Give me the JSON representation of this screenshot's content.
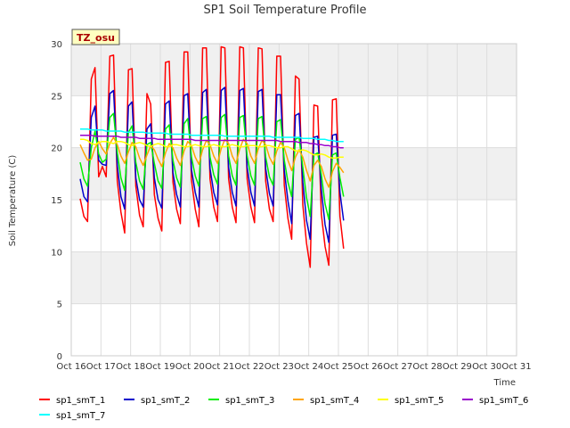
{
  "chart_data": {
    "type": "line",
    "title": "SP1 Soil Temperature Profile",
    "xlabel": "Time",
    "ylabel": "Soil Temperature (C)",
    "station_badge": "TZ_osu",
    "xlim": [
      16,
      31
    ],
    "ylim": [
      0,
      30
    ],
    "x_ticks": [
      {
        "value": 16,
        "label": "Oct 16"
      },
      {
        "value": 17,
        "label": "Oct 17"
      },
      {
        "value": 18,
        "label": "Oct 18"
      },
      {
        "value": 19,
        "label": "Oct 19"
      },
      {
        "value": 20,
        "label": "Oct 20"
      },
      {
        "value": 21,
        "label": "Oct 21"
      },
      {
        "value": 22,
        "label": "Oct 22"
      },
      {
        "value": 23,
        "label": "Oct 23"
      },
      {
        "value": 24,
        "label": "Oct 24"
      },
      {
        "value": 25,
        "label": "Oct 25"
      },
      {
        "value": 26,
        "label": "Oct 26"
      },
      {
        "value": 27,
        "label": "Oct 27"
      },
      {
        "value": 28,
        "label": "Oct 28"
      },
      {
        "value": 29,
        "label": "Oct 29"
      },
      {
        "value": 30,
        "label": "Oct 30"
      },
      {
        "value": 31,
        "label": "Oct 31"
      }
    ],
    "y_ticks": [
      0,
      5,
      10,
      15,
      20,
      25,
      30
    ],
    "grid": true,
    "legend_position": "bottom",
    "x_start": 16.3,
    "x_step": 0.125,
    "series": [
      {
        "name": "sp1_smT_1",
        "color": "#ff0000",
        "values": [
          15.1,
          13.4,
          12.9,
          26.6,
          27.7,
          17.2,
          18.2,
          17.2,
          28.8,
          28.9,
          16.8,
          13.8,
          11.8,
          27.5,
          27.6,
          16.3,
          13.5,
          12.4,
          25.2,
          24.2,
          15.5,
          13.2,
          12.0,
          28.2,
          28.3,
          16.7,
          14.1,
          12.7,
          29.2,
          29.2,
          16.9,
          14.1,
          12.4,
          29.6,
          29.6,
          17.0,
          14.3,
          12.9,
          29.7,
          29.6,
          17.0,
          14.3,
          12.8,
          29.7,
          29.6,
          17.0,
          14.3,
          12.8,
          29.6,
          29.5,
          16.8,
          14.1,
          12.9,
          28.8,
          28.8,
          16.4,
          13.2,
          11.2,
          26.9,
          26.6,
          14.5,
          10.8,
          8.5,
          24.1,
          24.0,
          13.6,
          10.5,
          8.7,
          24.6,
          24.7,
          13.4,
          10.3
        ]
      },
      {
        "name": "sp1_smT_2",
        "color": "#0000cc",
        "values": [
          17.0,
          15.3,
          14.8,
          22.9,
          24.0,
          18.8,
          18.4,
          18.3,
          25.2,
          25.5,
          18.3,
          15.3,
          14.1,
          24.0,
          24.4,
          17.1,
          15.0,
          14.3,
          21.8,
          22.3,
          17.1,
          15.0,
          14.2,
          24.2,
          24.5,
          17.6,
          15.5,
          14.3,
          25.0,
          25.2,
          17.9,
          15.7,
          14.3,
          25.3,
          25.6,
          18.0,
          15.7,
          14.5,
          25.5,
          25.8,
          18.1,
          15.7,
          14.4,
          25.5,
          25.7,
          18.1,
          15.7,
          14.4,
          25.4,
          25.6,
          18.0,
          15.6,
          14.4,
          25.1,
          25.1,
          17.8,
          14.9,
          12.7,
          23.1,
          23.3,
          16.7,
          13.0,
          11.2,
          21.0,
          21.1,
          16.0,
          12.6,
          10.9,
          21.2,
          21.3,
          15.7,
          13.0
        ]
      },
      {
        "name": "sp1_smT_3",
        "color": "#00ee00",
        "values": [
          18.6,
          17.0,
          16.3,
          20.0,
          21.6,
          19.4,
          18.6,
          18.9,
          22.9,
          23.3,
          19.5,
          17.1,
          15.9,
          21.5,
          22.1,
          18.6,
          16.8,
          16.0,
          20.3,
          20.5,
          18.5,
          16.8,
          16.1,
          21.8,
          22.2,
          18.8,
          17.1,
          16.2,
          22.3,
          22.8,
          19.1,
          17.3,
          16.3,
          22.8,
          23.0,
          19.1,
          17.4,
          16.5,
          22.9,
          23.2,
          19.2,
          17.3,
          16.4,
          22.9,
          23.1,
          19.2,
          17.3,
          16.4,
          22.8,
          23.0,
          19.1,
          17.2,
          16.4,
          22.5,
          22.7,
          18.8,
          16.7,
          15.3,
          20.8,
          21.0,
          18.1,
          15.2,
          13.4,
          19.3,
          19.5,
          17.4,
          14.6,
          13.1,
          19.3,
          19.5,
          17.1,
          15.3
        ]
      },
      {
        "name": "sp1_smT_4",
        "color": "#ffa500",
        "values": [
          20.3,
          19.5,
          18.8,
          18.9,
          20.0,
          20.6,
          19.9,
          19.4,
          20.4,
          21.0,
          20.3,
          19.2,
          18.5,
          19.6,
          20.5,
          20.1,
          19.0,
          18.3,
          19.3,
          20.2,
          19.8,
          18.9,
          18.2,
          19.5,
          20.4,
          20.0,
          19.0,
          18.3,
          19.7,
          20.6,
          20.2,
          19.1,
          18.4,
          19.8,
          20.7,
          20.3,
          19.2,
          18.5,
          19.9,
          20.8,
          20.4,
          19.2,
          18.5,
          19.9,
          20.8,
          20.4,
          19.2,
          18.5,
          19.9,
          20.7,
          20.3,
          19.1,
          18.4,
          19.7,
          20.5,
          20.0,
          18.8,
          17.8,
          19.1,
          19.8,
          19.1,
          17.8,
          16.8,
          18.3,
          18.8,
          18.2,
          17.0,
          16.2,
          17.7,
          18.5,
          18.1,
          17.6
        ]
      },
      {
        "name": "sp1_smT_5",
        "color": "#ffff00",
        "values": [
          20.8,
          20.8,
          20.7,
          20.4,
          20.3,
          20.5,
          20.6,
          20.6,
          20.5,
          20.4,
          20.6,
          20.6,
          20.5,
          20.3,
          20.2,
          20.4,
          20.5,
          20.4,
          20.2,
          20.1,
          20.3,
          20.4,
          20.3,
          20.1,
          20.1,
          20.3,
          20.3,
          20.2,
          20.1,
          20.1,
          20.2,
          20.3,
          20.2,
          20.1,
          20.1,
          20.2,
          20.3,
          20.2,
          20.1,
          20.1,
          20.2,
          20.3,
          20.2,
          20.1,
          20.1,
          20.2,
          20.2,
          20.2,
          20.1,
          20.1,
          20.2,
          20.2,
          20.1,
          20.0,
          20.0,
          20.1,
          20.1,
          19.9,
          19.7,
          19.7,
          19.8,
          19.7,
          19.5,
          19.3,
          19.3,
          19.4,
          19.3,
          19.1,
          19.0,
          19.0,
          19.1,
          19.1
        ]
      },
      {
        "name": "sp1_smT_6",
        "color": "#9900cc",
        "values": [
          21.2,
          21.2,
          21.2,
          21.2,
          21.1,
          21.1,
          21.1,
          21.1,
          21.1,
          21.1,
          21.1,
          21.0,
          21.0,
          21.0,
          21.0,
          21.0,
          20.9,
          20.9,
          20.9,
          20.9,
          20.9,
          20.8,
          20.8,
          20.8,
          20.8,
          20.8,
          20.8,
          20.8,
          20.8,
          20.8,
          20.8,
          20.7,
          20.7,
          20.7,
          20.7,
          20.7,
          20.7,
          20.7,
          20.7,
          20.7,
          20.7,
          20.7,
          20.7,
          20.7,
          20.7,
          20.7,
          20.7,
          20.7,
          20.7,
          20.7,
          20.7,
          20.7,
          20.7,
          20.7,
          20.6,
          20.6,
          20.6,
          20.6,
          20.6,
          20.5,
          20.5,
          20.5,
          20.4,
          20.4,
          20.3,
          20.3,
          20.2,
          20.2,
          20.1,
          20.1,
          20.0,
          20.0
        ]
      },
      {
        "name": "sp1_smT_7",
        "color": "#00ffff",
        "values": [
          21.8,
          21.8,
          21.8,
          21.7,
          21.7,
          21.7,
          21.7,
          21.6,
          21.6,
          21.6,
          21.6,
          21.6,
          21.5,
          21.5,
          21.5,
          21.5,
          21.5,
          21.5,
          21.4,
          21.4,
          21.4,
          21.4,
          21.4,
          21.4,
          21.3,
          21.3,
          21.3,
          21.3,
          21.3,
          21.3,
          21.2,
          21.2,
          21.2,
          21.2,
          21.2,
          21.2,
          21.2,
          21.2,
          21.2,
          21.1,
          21.1,
          21.1,
          21.1,
          21.1,
          21.1,
          21.1,
          21.1,
          21.1,
          21.1,
          21.1,
          21.1,
          21.1,
          21.0,
          21.0,
          21.0,
          21.0,
          21.0,
          21.0,
          21.0,
          21.0,
          20.9,
          20.9,
          20.9,
          20.9,
          20.8,
          20.8,
          20.8,
          20.7,
          20.7,
          20.6,
          20.6,
          20.6
        ]
      }
    ]
  }
}
